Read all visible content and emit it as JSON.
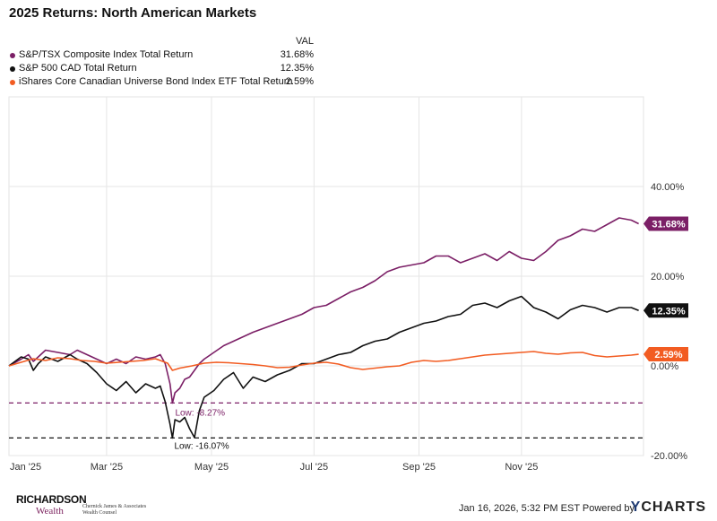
{
  "title": "2025 Returns: North American Markets",
  "legend": {
    "header": "VAL",
    "items": [
      {
        "name": "S&P/TSX Composite Index Total Return",
        "value": "31.68%",
        "color": "#7b1f66"
      },
      {
        "name": "S&P 500 CAD Total Return",
        "value": "12.35%",
        "color": "#111111"
      },
      {
        "name": "iShares Core Canadian Universe Bond Index ETF Total Return",
        "value": "2.59%",
        "color": "#f25c22"
      }
    ]
  },
  "chart_data": {
    "type": "line",
    "title": "2025 Returns: North American Markets",
    "x_unit": "trading day index (0 = Jan 2, 2025)",
    "xlim": [
      0,
      260
    ],
    "ylim": [
      -20,
      60
    ],
    "y_ticks": [
      "40.00%",
      "20.00%",
      "0.00%",
      "-20.00%"
    ],
    "y_tick_values": [
      40,
      20,
      0,
      -20
    ],
    "x_ticks": [
      "Jan '25",
      "Mar '25",
      "May '25",
      "Jul '25",
      "Sep '25",
      "Nov '25"
    ],
    "x_tick_values": [
      0,
      40,
      83,
      125,
      168,
      210
    ],
    "series": [
      {
        "name": "S&P/TSX Composite Index Total Return",
        "color": "#7b1f66",
        "end_label": "31.68%",
        "x": [
          0,
          5,
          8,
          10,
          12,
          15,
          20,
          25,
          28,
          32,
          36,
          40,
          44,
          48,
          52,
          56,
          60,
          62,
          64,
          66,
          67,
          68,
          70,
          72,
          74,
          76,
          78,
          80,
          84,
          88,
          92,
          96,
          100,
          105,
          110,
          115,
          120,
          125,
          130,
          135,
          140,
          145,
          150,
          155,
          160,
          165,
          170,
          175,
          180,
          185,
          190,
          195,
          200,
          205,
          210,
          215,
          220,
          225,
          230,
          235,
          240,
          245,
          250,
          255,
          258
        ],
        "values": [
          0,
          1.5,
          2.5,
          1.0,
          2.0,
          3.5,
          3.0,
          2.5,
          3.5,
          2.5,
          1.5,
          0.5,
          1.5,
          0.5,
          2.0,
          1.5,
          2.0,
          2.5,
          0.5,
          -4.0,
          -8.3,
          -6.0,
          -5.0,
          -3.0,
          -2.5,
          -1.0,
          0.5,
          1.5,
          3.0,
          4.5,
          5.5,
          6.5,
          7.5,
          8.5,
          9.5,
          10.5,
          11.5,
          13.0,
          13.5,
          15.0,
          16.5,
          17.5,
          19.0,
          21.0,
          22.0,
          22.5,
          23.0,
          24.5,
          24.5,
          23.0,
          24.0,
          25.0,
          23.5,
          25.5,
          24.0,
          23.5,
          25.5,
          28.0,
          29.0,
          30.5,
          30.0,
          31.5,
          33.0,
          32.5,
          31.7
        ]
      },
      {
        "name": "S&P 500 CAD Total Return",
        "color": "#111111",
        "end_label": "12.35%",
        "x": [
          0,
          5,
          8,
          10,
          12,
          15,
          20,
          25,
          28,
          32,
          36,
          40,
          44,
          48,
          52,
          56,
          60,
          62,
          64,
          66,
          67,
          68,
          70,
          72,
          74,
          76,
          78,
          80,
          84,
          88,
          92,
          96,
          100,
          105,
          110,
          115,
          120,
          125,
          130,
          135,
          140,
          145,
          150,
          155,
          160,
          165,
          170,
          175,
          180,
          185,
          190,
          195,
          200,
          205,
          210,
          215,
          220,
          225,
          230,
          235,
          240,
          245,
          250,
          255,
          258
        ],
        "values": [
          0,
          2.0,
          1.5,
          -1.0,
          0.5,
          2.0,
          1.0,
          2.5,
          1.5,
          0.5,
          -1.5,
          -4.0,
          -5.5,
          -3.5,
          -6.0,
          -4.0,
          -5.0,
          -4.5,
          -8.0,
          -13.0,
          -16.1,
          -12.0,
          -12.5,
          -11.5,
          -14.0,
          -16.0,
          -10.0,
          -7.0,
          -5.5,
          -3.0,
          -1.5,
          -5.0,
          -2.5,
          -3.5,
          -2.0,
          -1.0,
          0.5,
          0.5,
          1.5,
          2.5,
          3.0,
          4.5,
          5.5,
          6.0,
          7.5,
          8.5,
          9.5,
          10.0,
          11.0,
          11.5,
          13.5,
          14.0,
          13.0,
          14.5,
          15.5,
          13.0,
          12.0,
          10.5,
          12.5,
          13.5,
          13.0,
          12.0,
          13.0,
          13.0,
          12.35
        ]
      },
      {
        "name": "iShares Core Canadian Universe Bond Index ETF Total Return",
        "color": "#f25c22",
        "end_label": "2.59%",
        "x": [
          0,
          5,
          10,
          15,
          20,
          25,
          30,
          35,
          40,
          45,
          50,
          55,
          60,
          65,
          67,
          70,
          75,
          80,
          85,
          90,
          95,
          100,
          105,
          110,
          115,
          120,
          125,
          130,
          135,
          140,
          145,
          150,
          155,
          160,
          165,
          170,
          175,
          180,
          185,
          190,
          195,
          200,
          205,
          210,
          215,
          220,
          225,
          230,
          235,
          240,
          245,
          250,
          255,
          258
        ],
        "values": [
          0,
          0.8,
          1.6,
          1.2,
          1.8,
          1.6,
          1.2,
          1.0,
          0.6,
          0.8,
          1.0,
          1.2,
          1.6,
          0.6,
          -1.0,
          -0.5,
          0.0,
          0.6,
          0.8,
          0.7,
          0.5,
          0.3,
          0.0,
          -0.4,
          -0.3,
          0.2,
          0.6,
          0.8,
          0.4,
          -0.4,
          -0.8,
          -0.5,
          -0.2,
          0.0,
          0.8,
          1.2,
          1.0,
          1.2,
          1.6,
          2.0,
          2.4,
          2.6,
          2.8,
          3.0,
          3.2,
          2.8,
          2.6,
          2.9,
          3.0,
          2.3,
          2.0,
          2.2,
          2.4,
          2.59
        ]
      }
    ],
    "annotations": [
      {
        "type": "hline",
        "value": -8.27,
        "color": "#7b1f66",
        "style": "dashed",
        "label": "Low: -8.27%"
      },
      {
        "type": "hline",
        "value": -16.07,
        "color": "#111111",
        "style": "dashed",
        "label": "Low: -16.07%"
      }
    ]
  },
  "footer": {
    "timestamp": "Jan 16, 2026, 5:32 PM EST Powered by",
    "brand_y": "Y",
    "brand_rest": "CHARTS",
    "logo_main": "RICHARDSON",
    "logo_sub": "Wealth",
    "logo_tag_1": "Chernick James & Associates",
    "logo_tag_2": "Wealth Counsel"
  }
}
